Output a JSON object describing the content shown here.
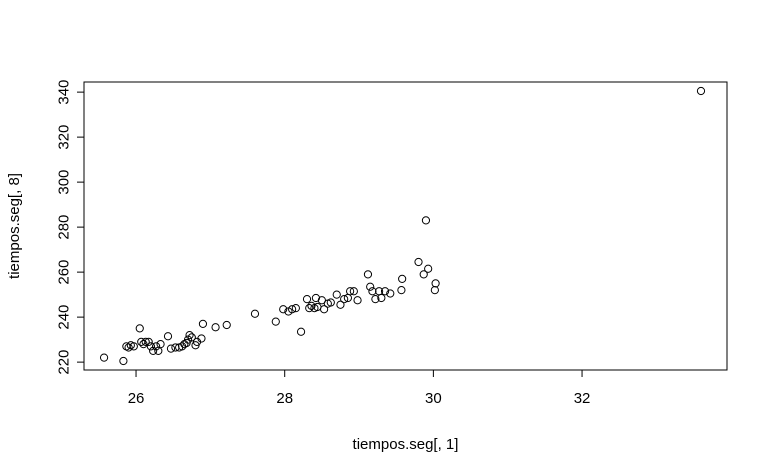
{
  "chart_data": {
    "type": "scatter",
    "title": "",
    "xlabel": "tiempos.seg[, 1]",
    "ylabel": "tiempos.seg[, 8]",
    "xlim": [
      25.3,
      33.95
    ],
    "ylim": [
      216.5,
      344.5
    ],
    "xticks": [
      26,
      28,
      30,
      32
    ],
    "yticks": [
      220,
      240,
      260,
      280,
      300,
      320,
      340
    ],
    "grid": false,
    "legend": "none",
    "points": [
      [
        25.57,
        222
      ],
      [
        25.83,
        220.5
      ],
      [
        25.87,
        227
      ],
      [
        25.9,
        226.5
      ],
      [
        25.93,
        227.5
      ],
      [
        25.97,
        227
      ],
      [
        26.05,
        235
      ],
      [
        26.07,
        229
      ],
      [
        26.1,
        228
      ],
      [
        26.13,
        229
      ],
      [
        26.17,
        229
      ],
      [
        26.2,
        227
      ],
      [
        26.23,
        225
      ],
      [
        26.27,
        227
      ],
      [
        26.3,
        225
      ],
      [
        26.33,
        228
      ],
      [
        26.43,
        231.5
      ],
      [
        26.47,
        226
      ],
      [
        26.53,
        226.5
      ],
      [
        26.58,
        226.5
      ],
      [
        26.62,
        227
      ],
      [
        26.65,
        228
      ],
      [
        26.68,
        228.5
      ],
      [
        26.7,
        230
      ],
      [
        26.72,
        232
      ],
      [
        26.75,
        231
      ],
      [
        26.8,
        227.5
      ],
      [
        26.82,
        229
      ],
      [
        26.88,
        230.5
      ],
      [
        26.9,
        237
      ],
      [
        27.07,
        235.5
      ],
      [
        27.22,
        236.5
      ],
      [
        27.6,
        241.5
      ],
      [
        27.88,
        238
      ],
      [
        27.98,
        243.5
      ],
      [
        28.05,
        242.5
      ],
      [
        28.1,
        243.5
      ],
      [
        28.15,
        244
      ],
      [
        28.22,
        233.5
      ],
      [
        28.3,
        248
      ],
      [
        28.33,
        244
      ],
      [
        28.36,
        245
      ],
      [
        28.4,
        244
      ],
      [
        28.42,
        248.5
      ],
      [
        28.44,
        244.5
      ],
      [
        28.5,
        247.5
      ],
      [
        28.53,
        243.5
      ],
      [
        28.58,
        246
      ],
      [
        28.62,
        246.5
      ],
      [
        28.7,
        250
      ],
      [
        28.75,
        245.5
      ],
      [
        28.8,
        248
      ],
      [
        28.85,
        248.5
      ],
      [
        28.88,
        251.5
      ],
      [
        28.93,
        251.5
      ],
      [
        28.98,
        247.5
      ],
      [
        29.12,
        259
      ],
      [
        29.15,
        253.5
      ],
      [
        29.18,
        251.5
      ],
      [
        29.22,
        248
      ],
      [
        29.27,
        251.5
      ],
      [
        29.3,
        248.5
      ],
      [
        29.35,
        251.5
      ],
      [
        29.42,
        250.5
      ],
      [
        29.57,
        252
      ],
      [
        29.58,
        257
      ],
      [
        29.8,
        264.5
      ],
      [
        29.87,
        259
      ],
      [
        29.9,
        283
      ],
      [
        29.93,
        261.5
      ],
      [
        30.02,
        252
      ],
      [
        30.03,
        255
      ],
      [
        33.6,
        340.5
      ]
    ]
  }
}
